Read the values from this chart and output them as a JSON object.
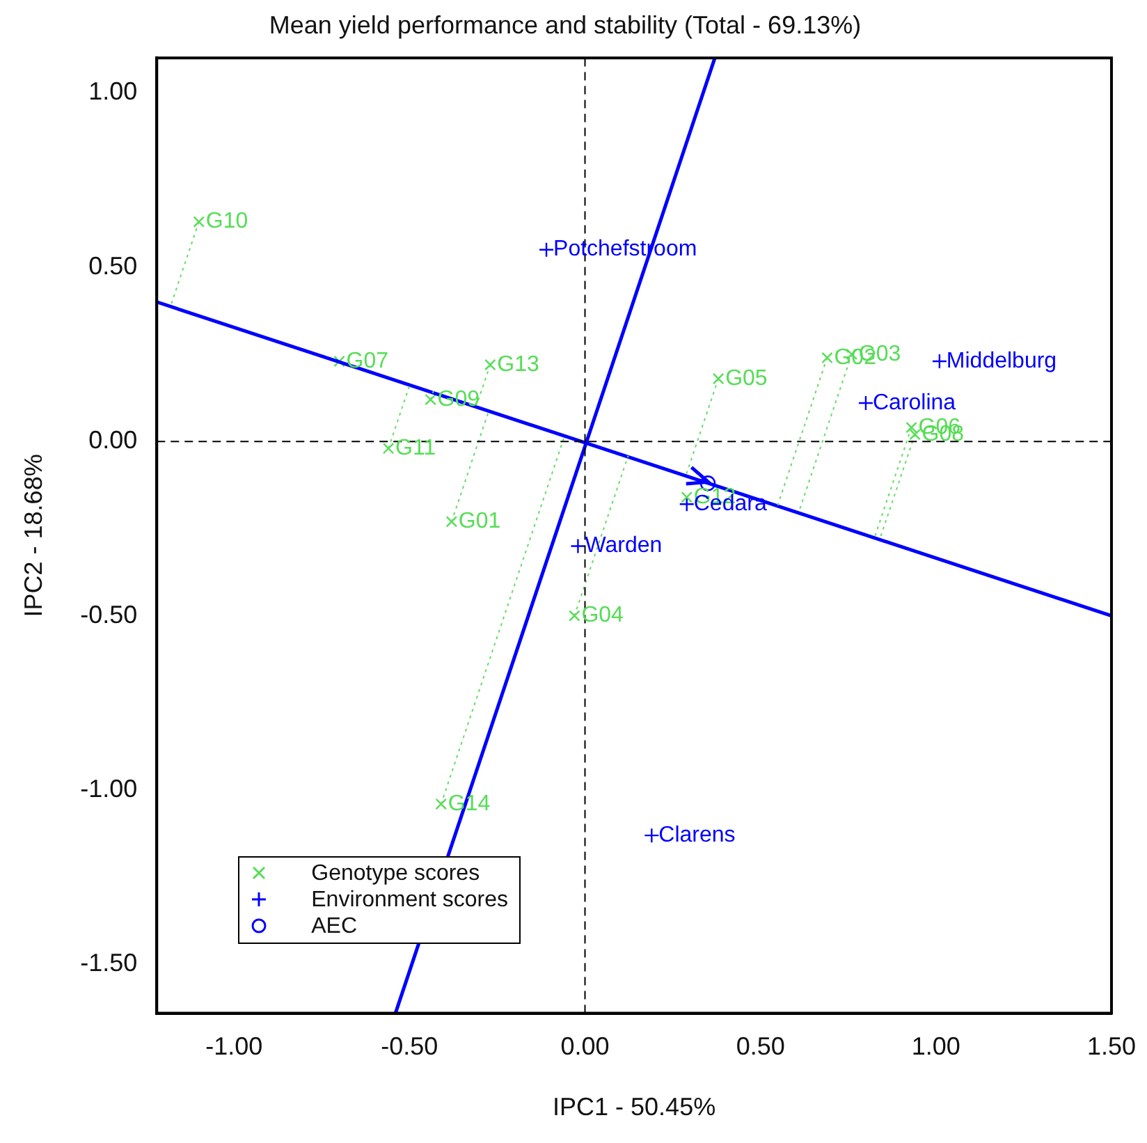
{
  "chart_data": {
    "type": "scatter",
    "title": "Mean yield performance and stability (Total - 69.13%)",
    "xlabel": "IPC1 - 50.45%",
    "ylabel": "IPC2 - 18.68%",
    "xlim": [
      -1.22,
      1.5
    ],
    "ylim": [
      -1.64,
      1.1
    ],
    "xticks": [
      {
        "value": -1,
        "label": "-1.00"
      },
      {
        "value": -0.5,
        "label": "-0.50"
      },
      {
        "value": 0,
        "label": "0.00"
      },
      {
        "value": 0.5,
        "label": "0.50"
      },
      {
        "value": 1,
        "label": "1.00"
      },
      {
        "value": 1.5,
        "label": "1.50"
      }
    ],
    "yticks": [
      {
        "value": -1.5,
        "label": "-1.50"
      },
      {
        "value": -1,
        "label": "-1.00"
      },
      {
        "value": -0.5,
        "label": "-0.50"
      },
      {
        "value": 0,
        "label": "0.00"
      },
      {
        "value": 0.5,
        "label": "0.50"
      },
      {
        "value": 1,
        "label": "1.00"
      }
    ],
    "grid": false,
    "legend": "bottom left",
    "series": [
      {
        "type": "line",
        "color": "#000000",
        "line_style": "dashed",
        "marker": "none",
        "x": [
          0,
          0
        ],
        "values": [
          -1.64,
          1.1
        ]
      },
      {
        "type": "line",
        "color": "#000000",
        "line_style": "dashed",
        "marker": "none",
        "x": [
          -1.22,
          1.5
        ],
        "values": [
          0,
          0
        ]
      },
      {
        "type": "line",
        "color": "#66dd66",
        "line_style": "dotted",
        "marker": "none",
        "x": [
          -1.1,
          -1.179
        ],
        "values": [
          0.63,
          0.393
        ]
      },
      {
        "type": "line",
        "color": "#66dd66",
        "line_style": "dotted",
        "marker": "none",
        "x": [
          -0.27,
          -0.309
        ],
        "values": [
          0.22,
          0.103
        ]
      },
      {
        "type": "line",
        "color": "#66dd66",
        "line_style": "dotted",
        "marker": "none",
        "x": [
          -0.44,
          -0.432
        ],
        "values": [
          0.12,
          0.144
        ]
      },
      {
        "type": "line",
        "color": "#66dd66",
        "line_style": "dotted",
        "marker": "none",
        "x": [
          -0.56,
          -0.498
        ],
        "values": [
          -0.02,
          0.166
        ]
      },
      {
        "type": "line",
        "color": "#66dd66",
        "line_style": "dotted",
        "marker": "none",
        "x": [
          -0.38,
          -0.273
        ],
        "values": [
          -0.23,
          0.091
        ]
      },
      {
        "type": "line",
        "color": "#66dd66",
        "line_style": "dotted",
        "marker": "none",
        "x": [
          0.38,
          0.288
        ],
        "values": [
          0.18,
          -0.096
        ]
      },
      {
        "type": "line",
        "color": "#66dd66",
        "line_style": "dotted",
        "marker": "none",
        "x": [
          0.69,
          0.549
        ],
        "values": [
          0.24,
          -0.183
        ]
      },
      {
        "type": "line",
        "color": "#66dd66",
        "line_style": "dotted",
        "marker": "none",
        "x": [
          0.76,
          0.609
        ],
        "values": [
          0.25,
          -0.203
        ]
      },
      {
        "type": "line",
        "color": "#66dd66",
        "line_style": "dotted",
        "marker": "none",
        "x": [
          0.93,
          0.825
        ],
        "values": [
          0.04,
          -0.275
        ]
      },
      {
        "type": "line",
        "color": "#66dd66",
        "line_style": "dotted",
        "marker": "none",
        "x": [
          0.94,
          0.84
        ],
        "values": [
          0.02,
          -0.28
        ]
      },
      {
        "type": "line",
        "color": "#66dd66",
        "line_style": "dotted",
        "marker": "none",
        "x": [
          -0.03,
          0.123
        ],
        "values": [
          -0.5,
          -0.041
        ]
      },
      {
        "type": "line",
        "color": "#66dd66",
        "line_style": "dotted",
        "marker": "none",
        "x": [
          -0.41,
          -0.057
        ],
        "values": [
          -1.04,
          0.019
        ]
      },
      {
        "type": "line",
        "color": "#0000ff",
        "line_style": "solid",
        "marker": "none",
        "x": [
          -1.22,
          1.5
        ],
        "values": [
          0.4,
          -0.5
        ]
      },
      {
        "type": "line",
        "color": "#0000ff",
        "line_style": "solid",
        "marker": "none",
        "x": [
          -0.54,
          0.37
        ],
        "values": [
          -1.64,
          1.1
        ]
      },
      {
        "type": "scatter",
        "name": "Genotype scores",
        "color": "#55dd55",
        "marker": "cross",
        "x": [
          -1.1,
          -0.7,
          -0.27,
          -0.44,
          -0.56,
          -0.38,
          0.38,
          0.69,
          0.76,
          0.93,
          0.94,
          0.29,
          -0.03,
          -0.41
        ],
        "values": [
          0.63,
          0.23,
          0.22,
          0.12,
          -0.02,
          -0.23,
          0.18,
          0.24,
          0.25,
          0.04,
          0.02,
          -0.16,
          -0.5,
          -1.04
        ],
        "value_labels": [
          "G10",
          "G07",
          "G13",
          "G09",
          "G11",
          "G01",
          "G05",
          "G02",
          "G03",
          "G06",
          "G08",
          "G12",
          "G04",
          "G14"
        ]
      },
      {
        "type": "scatter",
        "name": "Environment scores",
        "color": "#0000ff",
        "marker": "plus",
        "x": [
          -0.11,
          1.01,
          0.8,
          0.29,
          -0.02,
          0.19
        ],
        "values": [
          0.55,
          0.23,
          0.11,
          -0.18,
          -0.3,
          -1.13
        ],
        "value_labels": [
          "Potchefstroom",
          "Middelburg",
          "Carolina",
          "Cedara",
          "Warden",
          "Clarens"
        ]
      },
      {
        "type": "scatter",
        "name": "AEC",
        "color": "#0000ff",
        "marker": "circle",
        "x": [
          0.35
        ],
        "values": [
          -0.12
        ]
      }
    ]
  }
}
